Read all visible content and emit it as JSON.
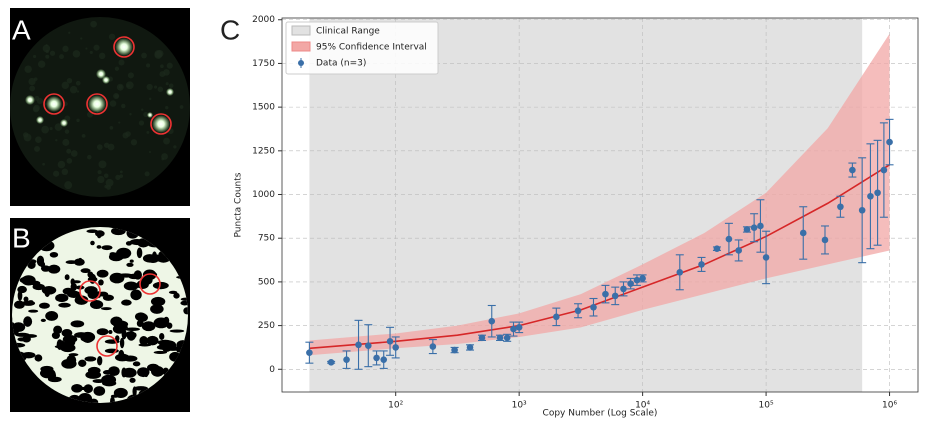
{
  "panels": {
    "a": "A",
    "b": "B",
    "c": "C"
  },
  "chart_data": {
    "type": "scatter",
    "x_label": "Copy Number (Log Scale)",
    "y_label": "Puncta Counts",
    "x_log": true,
    "grid": true,
    "legend_position": "upper-left",
    "xlim": [
      12,
      1700000
    ],
    "ylim": [
      -130,
      2010
    ],
    "xticks": [
      {
        "value": 100,
        "label": "10²"
      },
      {
        "value": 1000,
        "label": "10³"
      },
      {
        "value": 10000,
        "label": "10⁴"
      },
      {
        "value": 100000,
        "label": "10⁵"
      },
      {
        "value": 1000000,
        "label": "10⁶"
      }
    ],
    "yticks": [
      0,
      250,
      500,
      750,
      1000,
      1250,
      1500,
      1750,
      2000
    ],
    "clinical_range": {
      "name": "Clinical Range",
      "color": "#e2e2e2",
      "x": [
        20,
        600000
      ]
    },
    "confidence_band": {
      "name": "95% Confidence Interval",
      "color": "#f2a7a5",
      "x": [
        20,
        100,
        316,
        1000,
        3162,
        10000,
        31623,
        100000,
        316228,
        1000000
      ],
      "lower": [
        80,
        120,
        145,
        185,
        240,
        340,
        430,
        520,
        600,
        680
      ],
      "upper": [
        165,
        205,
        250,
        320,
        430,
        600,
        780,
        1010,
        1380,
        1920
      ]
    },
    "fit_line": {
      "color": "#d62728",
      "x": [
        20,
        100,
        316,
        1000,
        3162,
        10000,
        31623,
        100000,
        316228,
        1000000
      ],
      "values": [
        120,
        160,
        195,
        250,
        340,
        470,
        600,
        760,
        950,
        1170
      ]
    },
    "series": [
      {
        "name": "Data (n=3)",
        "color": "#3a6fa8",
        "x": [
          20,
          30,
          40,
          50,
          60,
          70,
          80,
          90,
          100,
          200,
          300,
          400,
          500,
          600,
          700,
          800,
          900,
          1000,
          2000,
          3000,
          4000,
          5000,
          6000,
          7000,
          8000,
          9000,
          10000,
          20000,
          30000,
          40000,
          50000,
          60000,
          70000,
          80000,
          90000,
          100000,
          200000,
          300000,
          400000,
          500000,
          600000,
          700000,
          800000,
          900000,
          1000000
        ],
        "values": [
          95,
          40,
          55,
          140,
          135,
          65,
          55,
          160,
          125,
          130,
          110,
          125,
          180,
          275,
          180,
          180,
          230,
          240,
          300,
          335,
          355,
          430,
          420,
          460,
          490,
          510,
          520,
          555,
          600,
          690,
          745,
          680,
          800,
          810,
          820,
          640,
          780,
          740,
          930,
          1140,
          910,
          990,
          1010,
          1140,
          1300
        ],
        "errors": [
          60,
          5,
          50,
          140,
          120,
          40,
          50,
          80,
          60,
          40,
          15,
          15,
          15,
          90,
          15,
          20,
          40,
          30,
          50,
          40,
          50,
          50,
          50,
          40,
          30,
          30,
          20,
          100,
          40,
          10,
          90,
          60,
          15,
          80,
          150,
          150,
          150,
          80,
          60,
          40,
          300,
          300,
          300,
          270,
          130
        ]
      }
    ]
  }
}
